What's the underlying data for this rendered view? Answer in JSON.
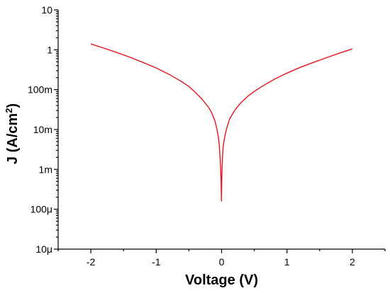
{
  "chart_data": {
    "type": "line",
    "title": "",
    "xlabel": "Voltage (V)",
    "ylabel": "J (A/cm2)",
    "ylabel_parts": [
      "J (A/cm",
      "2",
      ")"
    ],
    "x_scale": "linear",
    "y_scale": "log",
    "xlim": [
      -2.5,
      2.5
    ],
    "ylim": [
      1e-05,
      10
    ],
    "x_ticks": [
      -2,
      -1,
      0,
      1,
      2
    ],
    "x_tick_labels": [
      "-2",
      "-1",
      "0",
      "1",
      "2"
    ],
    "y_ticks": [
      1e-05,
      0.0001,
      0.001,
      0.01,
      0.1,
      1,
      10
    ],
    "y_tick_labels": [
      "10μ",
      "100μ",
      "1m",
      "10m",
      "100m",
      "1",
      "10"
    ],
    "grid": false,
    "legend": "none",
    "series": [
      {
        "color": "#e8141c",
        "x": [
          -2.0,
          -1.8,
          -1.6,
          -1.4,
          -1.2,
          -1.0,
          -0.8,
          -0.6,
          -0.5,
          -0.4,
          -0.3,
          -0.2,
          -0.15,
          -0.1,
          -0.07,
          -0.05,
          -0.035,
          -0.025,
          -0.015,
          -0.008,
          -0.002,
          0.002,
          0.008,
          0.015,
          0.025,
          0.04,
          0.06,
          0.08,
          0.1,
          0.12,
          0.15,
          0.2,
          0.3,
          0.4,
          0.5,
          0.6,
          0.8,
          1.0,
          1.2,
          1.4,
          1.6,
          1.8,
          2.0
        ],
        "y": [
          1.4,
          1.1,
          0.85,
          0.65,
          0.48,
          0.35,
          0.24,
          0.155,
          0.12,
          0.085,
          0.058,
          0.036,
          0.026,
          0.016,
          0.01,
          0.0065,
          0.004,
          0.0022,
          0.0011,
          0.0005,
          0.00016,
          0.0005,
          0.0011,
          0.0022,
          0.0038,
          0.0056,
          0.008,
          0.011,
          0.014,
          0.018,
          0.022,
          0.03,
          0.048,
          0.068,
          0.09,
          0.115,
          0.18,
          0.26,
          0.36,
          0.48,
          0.63,
          0.82,
          1.05
        ]
      }
    ]
  }
}
